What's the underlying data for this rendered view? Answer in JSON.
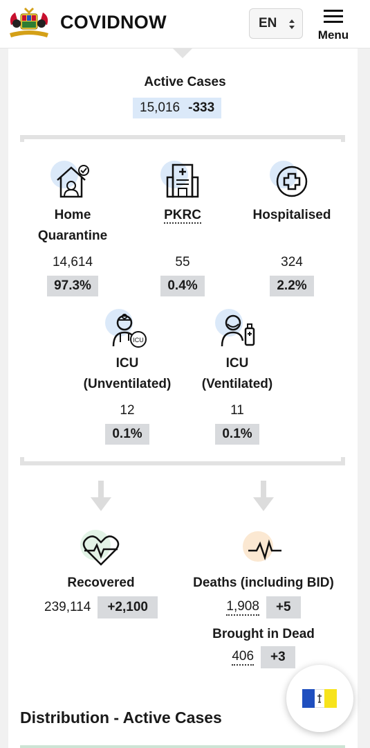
{
  "header": {
    "brand": "COVIDNOW",
    "language": "EN",
    "menu_label": "Menu"
  },
  "active_cases": {
    "title": "Active Cases",
    "value": "15,016",
    "delta": "-333"
  },
  "categories": [
    {
      "line1": "Home",
      "line2": "Quarantine",
      "value": "14,614",
      "pct": "97.3%",
      "icon": "home-quarantine-icon"
    },
    {
      "line1": "PKRC",
      "line2": "",
      "value": "55",
      "pct": "0.4%",
      "icon": "hospital-building-icon"
    },
    {
      "line1": "Hospitalised",
      "line2": "",
      "value": "324",
      "pct": "2.2%",
      "icon": "medical-cross-icon"
    },
    {
      "line1": "ICU",
      "line2": "(Unventilated)",
      "value": "12",
      "pct": "0.1%",
      "icon": "icu-doctor-icon"
    },
    {
      "line1": "ICU",
      "line2": "(Ventilated)",
      "value": "11",
      "pct": "0.1%",
      "icon": "ventilator-patient-icon"
    }
  ],
  "recovered": {
    "title": "Recovered",
    "value": "239,114",
    "delta": "+2,100",
    "icon": "heart-pulse-icon"
  },
  "deaths": {
    "title": "Deaths (including BID)",
    "value": "1,908",
    "delta": "+5",
    "icon": "pulse-line-icon"
  },
  "bid": {
    "title": "Brought in Dead",
    "value": "406",
    "delta": "+3"
  },
  "distribution": {
    "title": "Distribution - Active Cases"
  },
  "colors": {
    "chip_blue": "#dbe9f9",
    "chip_grey": "#d8dadd",
    "bracket_grey": "#e2e2e2",
    "flag_blue": "#1f4fbf",
    "flag_yellow": "#f7e31b"
  }
}
